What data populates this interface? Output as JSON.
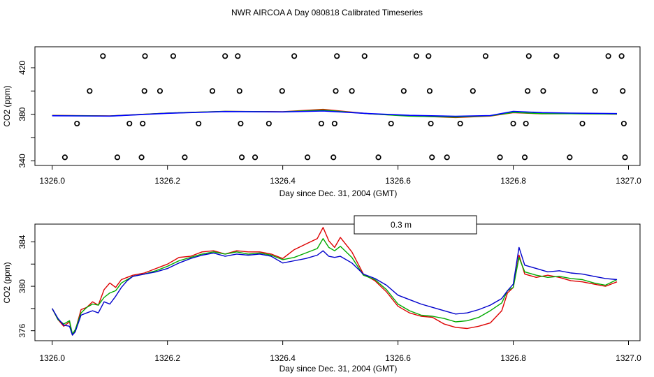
{
  "title": "NWR AIRCOA A  Day 080818  Calibrated Timeseries",
  "chart_data": [
    {
      "type": "scatter",
      "name": "top-panel",
      "xlabel": "Day since Dec. 31, 2004 (GMT)",
      "ylabel": "CO2 (ppm)",
      "xlim": [
        1325.97,
        1327.02
      ],
      "ylim": [
        336,
        438
      ],
      "xticks": [
        1326.0,
        1326.2,
        1326.4,
        1326.6,
        1326.8,
        1327.0
      ],
      "xtick_labels": [
        "1326.0",
        "1326.2",
        "1326.4",
        "1326.6",
        "1326.8",
        "1327.0"
      ],
      "yticks": [
        340,
        360,
        380,
        400,
        420
      ],
      "ytick_labels": [
        "340",
        "",
        "380",
        "",
        "420"
      ],
      "calibration_points": [
        [
          1326.022,
          343
        ],
        [
          1326.043,
          372
        ],
        [
          1326.065,
          400
        ],
        [
          1326.088,
          430
        ],
        [
          1326.113,
          343
        ],
        [
          1326.134,
          372
        ],
        [
          1326.155,
          343
        ],
        [
          1326.157,
          372
        ],
        [
          1326.16,
          400
        ],
        [
          1326.161,
          430
        ],
        [
          1326.187,
          400
        ],
        [
          1326.21,
          430
        ],
        [
          1326.23,
          343
        ],
        [
          1326.254,
          372
        ],
        [
          1326.278,
          400
        ],
        [
          1326.3,
          430
        ],
        [
          1326.322,
          430
        ],
        [
          1326.325,
          400
        ],
        [
          1326.327,
          372
        ],
        [
          1326.329,
          343
        ],
        [
          1326.352,
          343
        ],
        [
          1326.376,
          372
        ],
        [
          1326.399,
          400
        ],
        [
          1326.42,
          430
        ],
        [
          1326.443,
          343
        ],
        [
          1326.467,
          372
        ],
        [
          1326.488,
          343
        ],
        [
          1326.49,
          372
        ],
        [
          1326.492,
          400
        ],
        [
          1326.494,
          430
        ],
        [
          1326.52,
          400
        ],
        [
          1326.542,
          430
        ],
        [
          1326.566,
          343
        ],
        [
          1326.588,
          372
        ],
        [
          1326.61,
          400
        ],
        [
          1326.632,
          430
        ],
        [
          1326.653,
          430
        ],
        [
          1326.655,
          400
        ],
        [
          1326.657,
          372
        ],
        [
          1326.659,
          343
        ],
        [
          1326.685,
          343
        ],
        [
          1326.708,
          372
        ],
        [
          1326.73,
          400
        ],
        [
          1326.752,
          430
        ],
        [
          1326.777,
          343
        ],
        [
          1326.8,
          372
        ],
        [
          1326.82,
          343
        ],
        [
          1326.822,
          372
        ],
        [
          1326.825,
          400
        ],
        [
          1326.827,
          430
        ],
        [
          1326.852,
          400
        ],
        [
          1326.875,
          430
        ],
        [
          1326.898,
          343
        ],
        [
          1326.92,
          372
        ],
        [
          1326.942,
          400
        ],
        [
          1326.965,
          430
        ],
        [
          1326.988,
          430
        ],
        [
          1326.99,
          400
        ],
        [
          1326.992,
          372
        ],
        [
          1326.994,
          343
        ]
      ],
      "series": [
        {
          "name": "red",
          "color": "#ff0000",
          "x": [
            1326.0,
            1326.1,
            1326.2,
            1326.3,
            1326.4,
            1326.47,
            1326.55,
            1326.62,
            1326.7,
            1326.76,
            1326.8,
            1326.85,
            1326.9,
            1326.98
          ],
          "y": [
            379,
            378.6,
            381,
            382.5,
            382.2,
            384.2,
            380.4,
            378.6,
            377.2,
            378.5,
            381.4,
            380.4,
            380.6,
            380.1
          ]
        },
        {
          "name": "green",
          "color": "#00bb00",
          "x": [
            1326.0,
            1326.1,
            1326.2,
            1326.3,
            1326.4,
            1326.47,
            1326.55,
            1326.62,
            1326.7,
            1326.76,
            1326.8,
            1326.85,
            1326.9,
            1326.98
          ],
          "y": [
            378.9,
            378.5,
            381,
            382.5,
            382.1,
            383.6,
            380.4,
            378.4,
            377.6,
            378.7,
            381.6,
            380.6,
            380.5,
            380.2
          ]
        },
        {
          "name": "blue",
          "color": "#0000ff",
          "x": [
            1326.0,
            1326.1,
            1326.2,
            1326.3,
            1326.4,
            1326.47,
            1326.55,
            1326.62,
            1326.7,
            1326.76,
            1326.8,
            1326.85,
            1326.9,
            1326.98
          ],
          "y": [
            378.7,
            378.4,
            380.8,
            382.3,
            382.0,
            382.8,
            380.6,
            379.1,
            378.3,
            378.9,
            382.5,
            381.4,
            381.0,
            380.6
          ]
        }
      ]
    },
    {
      "type": "line",
      "name": "bottom-panel",
      "xlabel": "Day since Dec. 31, 2004 (GMT)",
      "ylabel": "CO2 (ppm)",
      "xlim": [
        1325.97,
        1327.02
      ],
      "ylim": [
        375.1,
        385.6
      ],
      "xticks": [
        1326.0,
        1326.2,
        1326.4,
        1326.6,
        1326.8,
        1327.0
      ],
      "xtick_labels": [
        "1326.0",
        "1326.2",
        "1326.4",
        "1326.6",
        "1326.8",
        "1327.0"
      ],
      "yticks": [
        376,
        378,
        380,
        382,
        384
      ],
      "ytick_labels": [
        "376",
        "",
        "380",
        "",
        "384"
      ],
      "legend_text": "0.3 m",
      "legend_position": "top-center",
      "series": [
        {
          "name": "red",
          "color": "#dd0000",
          "x": [
            1326.0,
            1326.01,
            1326.02,
            1326.03,
            1326.035,
            1326.04,
            1326.05,
            1326.06,
            1326.07,
            1326.08,
            1326.09,
            1326.1,
            1326.11,
            1326.12,
            1326.13,
            1326.14,
            1326.16,
            1326.18,
            1326.2,
            1326.22,
            1326.24,
            1326.26,
            1326.28,
            1326.3,
            1326.32,
            1326.34,
            1326.36,
            1326.38,
            1326.4,
            1326.42,
            1326.44,
            1326.46,
            1326.47,
            1326.48,
            1326.49,
            1326.5,
            1326.52,
            1326.54,
            1326.56,
            1326.58,
            1326.6,
            1326.62,
            1326.64,
            1326.66,
            1326.68,
            1326.7,
            1326.72,
            1326.74,
            1326.76,
            1326.78,
            1326.79,
            1326.8,
            1326.81,
            1326.82,
            1326.84,
            1326.86,
            1326.88,
            1326.9,
            1326.92,
            1326.94,
            1326.96,
            1326.98
          ],
          "y": [
            378.0,
            377.0,
            376.4,
            376.8,
            375.6,
            376.0,
            377.9,
            378.1,
            378.6,
            378.3,
            379.7,
            380.3,
            379.9,
            380.6,
            380.8,
            381.0,
            381.2,
            381.6,
            382.0,
            382.6,
            382.7,
            383.1,
            383.2,
            382.9,
            383.2,
            383.1,
            383.1,
            382.9,
            382.5,
            383.3,
            383.8,
            384.3,
            385.3,
            384.1,
            383.5,
            384.4,
            383.1,
            381.1,
            380.5,
            379.5,
            378.2,
            377.6,
            377.3,
            377.2,
            376.6,
            376.3,
            376.2,
            376.4,
            376.7,
            377.8,
            379.4,
            379.9,
            382.8,
            381.1,
            380.8,
            381.0,
            380.8,
            380.5,
            380.4,
            380.2,
            380.0,
            380.4
          ]
        },
        {
          "name": "green",
          "color": "#00aa00",
          "x": [
            1326.0,
            1326.01,
            1326.02,
            1326.03,
            1326.035,
            1326.04,
            1326.05,
            1326.06,
            1326.07,
            1326.08,
            1326.09,
            1326.1,
            1326.11,
            1326.12,
            1326.13,
            1326.14,
            1326.16,
            1326.18,
            1326.2,
            1326.22,
            1326.24,
            1326.26,
            1326.28,
            1326.3,
            1326.32,
            1326.34,
            1326.36,
            1326.38,
            1326.4,
            1326.42,
            1326.44,
            1326.46,
            1326.47,
            1326.48,
            1326.49,
            1326.5,
            1326.52,
            1326.54,
            1326.56,
            1326.58,
            1326.6,
            1326.62,
            1326.64,
            1326.66,
            1326.68,
            1326.7,
            1326.72,
            1326.74,
            1326.76,
            1326.78,
            1326.79,
            1326.8,
            1326.81,
            1326.82,
            1326.84,
            1326.86,
            1326.88,
            1326.9,
            1326.92,
            1326.94,
            1326.96,
            1326.98
          ],
          "y": [
            378.0,
            377.0,
            376.6,
            376.9,
            375.7,
            376.1,
            377.6,
            378.1,
            378.4,
            378.3,
            379.0,
            379.4,
            379.6,
            380.3,
            380.6,
            380.9,
            381.1,
            381.4,
            381.8,
            382.3,
            382.6,
            382.9,
            383.1,
            382.9,
            383.1,
            382.9,
            383.0,
            382.8,
            382.4,
            382.6,
            383.0,
            383.4,
            384.3,
            383.5,
            383.2,
            383.6,
            382.6,
            381.0,
            380.6,
            379.7,
            378.4,
            377.8,
            377.4,
            377.3,
            377.1,
            376.8,
            376.9,
            377.2,
            377.8,
            378.5,
            379.6,
            379.9,
            382.6,
            381.3,
            381.0,
            380.8,
            380.9,
            380.7,
            380.6,
            380.3,
            380.1,
            380.6
          ]
        },
        {
          "name": "blue",
          "color": "#0000cc",
          "x": [
            1326.0,
            1326.01,
            1326.02,
            1326.03,
            1326.035,
            1326.04,
            1326.05,
            1326.06,
            1326.07,
            1326.08,
            1326.09,
            1326.1,
            1326.11,
            1326.12,
            1326.13,
            1326.14,
            1326.16,
            1326.18,
            1326.2,
            1326.22,
            1326.24,
            1326.26,
            1326.28,
            1326.3,
            1326.32,
            1326.34,
            1326.36,
            1326.38,
            1326.4,
            1326.42,
            1326.44,
            1326.46,
            1326.47,
            1326.48,
            1326.49,
            1326.5,
            1326.52,
            1326.54,
            1326.56,
            1326.58,
            1326.6,
            1326.62,
            1326.64,
            1326.66,
            1326.68,
            1326.7,
            1326.72,
            1326.74,
            1326.76,
            1326.78,
            1326.79,
            1326.8,
            1326.81,
            1326.82,
            1326.84,
            1326.86,
            1326.88,
            1326.9,
            1326.92,
            1326.94,
            1326.96,
            1326.98
          ],
          "y": [
            378.0,
            377.1,
            376.5,
            376.4,
            375.6,
            375.9,
            377.4,
            377.6,
            377.8,
            377.6,
            378.6,
            378.4,
            379.1,
            379.9,
            380.5,
            380.9,
            381.1,
            381.3,
            381.6,
            382.1,
            382.5,
            382.8,
            383.0,
            382.7,
            382.9,
            382.8,
            382.9,
            382.7,
            382.1,
            382.3,
            382.5,
            382.8,
            383.2,
            382.7,
            382.6,
            382.7,
            382.1,
            381.1,
            380.7,
            380.1,
            379.2,
            378.8,
            378.4,
            378.1,
            377.8,
            377.5,
            377.6,
            377.9,
            378.3,
            378.9,
            379.6,
            380.2,
            383.5,
            381.9,
            381.6,
            381.3,
            381.4,
            381.2,
            381.1,
            380.9,
            380.7,
            380.6
          ]
        }
      ]
    }
  ]
}
